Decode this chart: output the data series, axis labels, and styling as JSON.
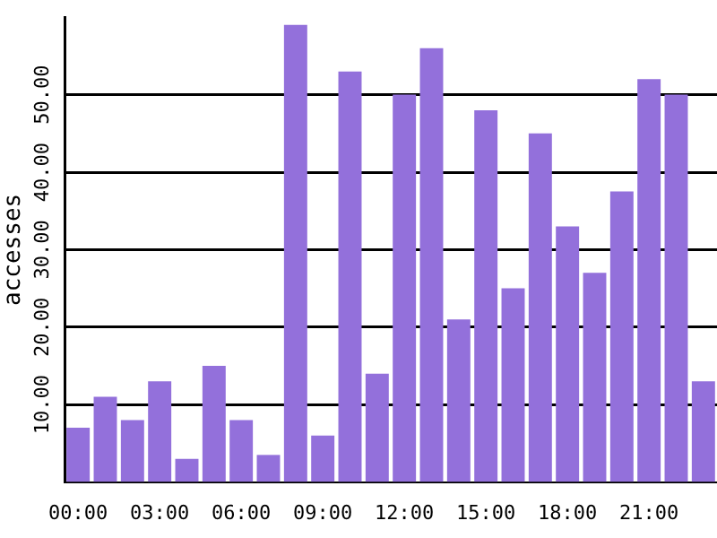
{
  "chart_data": {
    "type": "bar",
    "ylabel": "accesses",
    "categories": [
      "00:00",
      null,
      null,
      "03:00",
      null,
      null,
      "06:00",
      null,
      null,
      "09:00",
      null,
      null,
      "12:00",
      null,
      null,
      "15:00",
      null,
      null,
      "18:00",
      null,
      null,
      "21:00",
      null,
      null
    ],
    "values": [
      7,
      11,
      8,
      13,
      3,
      15,
      8,
      3.5,
      59,
      6,
      53,
      14,
      50,
      56,
      21,
      48,
      25,
      45,
      33,
      27,
      37.5,
      52,
      50,
      13
    ],
    "color": "#9370db",
    "ylim": [
      0,
      60
    ],
    "yticks": [
      {
        "value": 10,
        "label": "10.00"
      },
      {
        "value": 20,
        "label": "20.00"
      },
      {
        "value": 30,
        "label": "30.00"
      },
      {
        "value": 40,
        "label": "40.00"
      },
      {
        "value": 50,
        "label": "50.00"
      }
    ],
    "grid": "y"
  }
}
